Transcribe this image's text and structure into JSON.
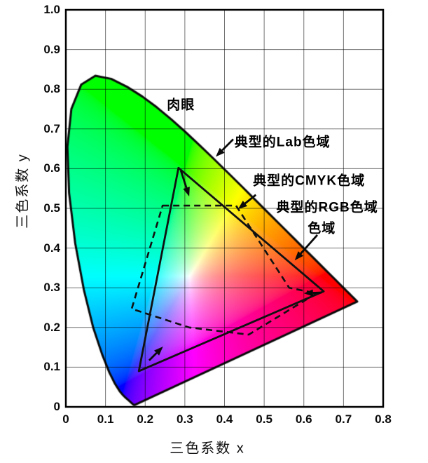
{
  "chart_data": {
    "type": "heatmap",
    "subtype": "CIE-1931-xy-chromaticity-gamut-comparison",
    "title": "",
    "xlabel": "三色系数 x",
    "ylabel": "三色系数 y",
    "xlim": [
      0,
      0.8
    ],
    "ylim": [
      0,
      1.0
    ],
    "x_ticks": [
      "0",
      "0.1",
      "0.2",
      "0.3",
      "0.4",
      "0.5",
      "0.6",
      "0.7",
      "0.8"
    ],
    "y_ticks": [
      "0",
      "0.1",
      "0.2",
      "0.3",
      "0.4",
      "0.5",
      "0.6",
      "0.7",
      "0.8",
      "0.9",
      "1.0"
    ],
    "grid": true,
    "background_color": "#ffffff",
    "line_color": "#000000",
    "white_point": [
      0.33,
      0.357
    ],
    "spectral_locus_xy": [
      [
        0.1741,
        0.005
      ],
      [
        0.174,
        0.005
      ],
      [
        0.1738,
        0.0049
      ],
      [
        0.1736,
        0.0049
      ],
      [
        0.1733,
        0.0048
      ],
      [
        0.173,
        0.0048
      ],
      [
        0.1726,
        0.0048
      ],
      [
        0.1721,
        0.0048
      ],
      [
        0.1714,
        0.0051
      ],
      [
        0.1703,
        0.0058
      ],
      [
        0.1689,
        0.0069
      ],
      [
        0.1669,
        0.0086
      ],
      [
        0.1644,
        0.0109
      ],
      [
        0.1611,
        0.0138
      ],
      [
        0.1566,
        0.0177
      ],
      [
        0.151,
        0.0227
      ],
      [
        0.144,
        0.0297
      ],
      [
        0.1355,
        0.0399
      ],
      [
        0.1241,
        0.0578
      ],
      [
        0.1096,
        0.0868
      ],
      [
        0.0913,
        0.1327
      ],
      [
        0.0687,
        0.2007
      ],
      [
        0.0454,
        0.295
      ],
      [
        0.0235,
        0.4127
      ],
      [
        0.0082,
        0.5384
      ],
      [
        0.0039,
        0.6548
      ],
      [
        0.0139,
        0.7502
      ],
      [
        0.0389,
        0.812
      ],
      [
        0.0743,
        0.8338
      ],
      [
        0.1142,
        0.8262
      ],
      [
        0.1547,
        0.8059
      ],
      [
        0.1929,
        0.7816
      ],
      [
        0.2296,
        0.7543
      ],
      [
        0.2658,
        0.7243
      ],
      [
        0.3016,
        0.6923
      ],
      [
        0.3373,
        0.6589
      ],
      [
        0.3731,
        0.6245
      ],
      [
        0.4087,
        0.5896
      ],
      [
        0.4441,
        0.5547
      ],
      [
        0.4788,
        0.5202
      ],
      [
        0.5125,
        0.4866
      ],
      [
        0.5448,
        0.4544
      ],
      [
        0.5752,
        0.4242
      ],
      [
        0.6029,
        0.3965
      ],
      [
        0.627,
        0.3725
      ],
      [
        0.6482,
        0.3514
      ],
      [
        0.6658,
        0.334
      ],
      [
        0.6801,
        0.3197
      ],
      [
        0.6915,
        0.3083
      ],
      [
        0.7006,
        0.2993
      ],
      [
        0.7079,
        0.292
      ],
      [
        0.714,
        0.2859
      ],
      [
        0.719,
        0.2809
      ],
      [
        0.723,
        0.277
      ],
      [
        0.726,
        0.274
      ],
      [
        0.7283,
        0.2717
      ],
      [
        0.73,
        0.27
      ],
      [
        0.7311,
        0.2689
      ],
      [
        0.732,
        0.268
      ],
      [
        0.7327,
        0.2673
      ],
      [
        0.7334,
        0.2666
      ],
      [
        0.734,
        0.266
      ],
      [
        0.7344,
        0.2656
      ],
      [
        0.7346,
        0.2654
      ],
      [
        0.7347,
        0.2653
      ]
    ],
    "gamuts": [
      {
        "name": "典型的RGB色域",
        "line_style": "solid",
        "points": [
          [
            0.284,
            0.602
          ],
          [
            0.65,
            0.291
          ],
          [
            0.184,
            0.09
          ]
        ]
      },
      {
        "name": "典型的CMYK色域",
        "line_style": "dashed",
        "points": [
          [
            0.244,
            0.507
          ],
          [
            0.429,
            0.507
          ],
          [
            0.563,
            0.3
          ],
          [
            0.632,
            0.286
          ],
          [
            0.461,
            0.182
          ],
          [
            0.311,
            0.2
          ],
          [
            0.166,
            0.247
          ]
        ]
      },
      {
        "name": "典型的Lab色域",
        "line_style": "spectral-locus-boundary",
        "points": []
      }
    ],
    "annotations": [
      {
        "text": "肉眼",
        "x": 0.29,
        "y": 0.764,
        "arrow": null
      },
      {
        "text": "典型的Lab色域",
        "x": 0.546,
        "y": 0.67,
        "arrow": {
          "from": [
            0.422,
            0.674
          ],
          "to": [
            0.378,
            0.63
          ]
        }
      },
      {
        "text": "典型的CMYK色域",
        "x": 0.613,
        "y": 0.572,
        "arrow": {
          "from": [
            0.479,
            0.534
          ],
          "to": [
            0.434,
            0.498
          ]
        }
      },
      {
        "text": "典型的RGB色域",
        "x": 0.659,
        "y": 0.505,
        "arrow": null
      },
      {
        "text": "色域",
        "x": 0.645,
        "y": 0.452,
        "arrow": {
          "from": [
            0.634,
            0.433
          ],
          "to": [
            0.577,
            0.369
          ]
        }
      }
    ],
    "vertex_arrows": [
      {
        "from": [
          0.29,
          0.595
        ],
        "to": [
          0.311,
          0.53
        ]
      },
      {
        "from": [
          0.21,
          0.117
        ],
        "to": [
          0.245,
          0.152
        ]
      },
      {
        "from": [
          0.645,
          0.288
        ],
        "to": [
          0.6,
          0.286
        ]
      }
    ]
  }
}
